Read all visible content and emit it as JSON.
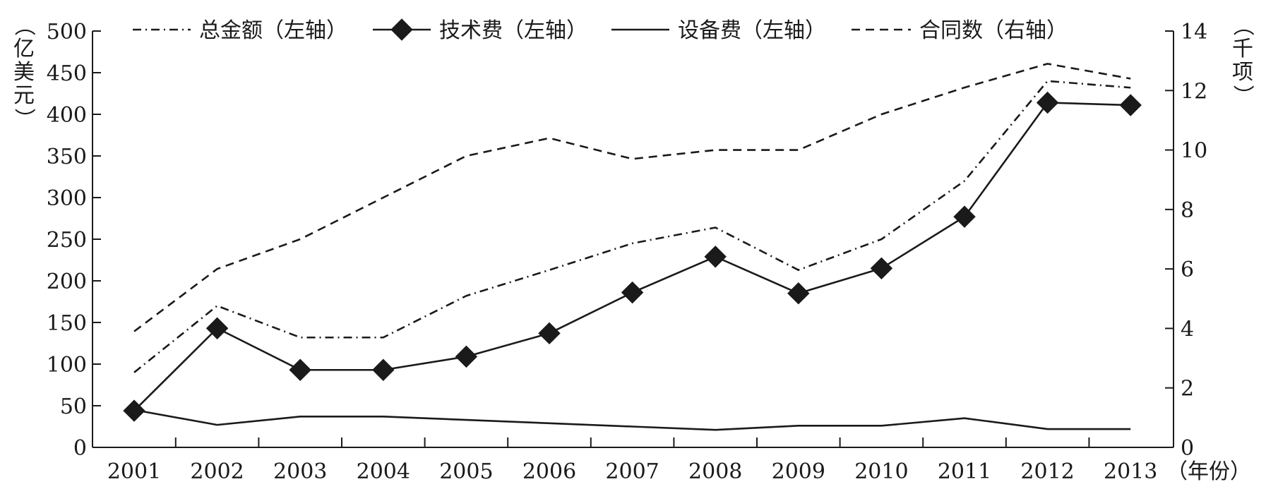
{
  "chart_data": {
    "type": "line",
    "categories": [
      "2001",
      "2002",
      "2003",
      "2004",
      "2005",
      "2006",
      "2007",
      "2008",
      "2009",
      "2010",
      "2011",
      "2012",
      "2013"
    ],
    "x_unit_label": "（年份）",
    "left_axis": {
      "unit_label": "（亿美元）",
      "ylim": [
        0,
        500
      ],
      "ticks": [
        "0",
        "50",
        "100",
        "150",
        "200",
        "250",
        "300",
        "350",
        "400",
        "450",
        "500"
      ]
    },
    "right_axis": {
      "unit_label": "（千项）",
      "ylim": [
        0,
        14
      ],
      "ticks": [
        "0",
        "2",
        "4",
        "6",
        "8",
        "10",
        "12",
        "14"
      ]
    },
    "legend_position": "top",
    "series": [
      {
        "name": "总金额（左轴）",
        "axis": "left",
        "style": "dash-dot",
        "values": [
          90,
          170,
          132,
          132,
          182,
          213,
          245,
          264,
          213,
          250,
          320,
          440,
          432
        ]
      },
      {
        "name": "技术费（左轴）",
        "axis": "left",
        "style": "solid-diamond",
        "values": [
          44,
          143,
          93,
          93,
          109,
          137,
          186,
          229,
          185,
          215,
          277,
          414,
          411
        ]
      },
      {
        "name": "设备费（左轴）",
        "axis": "left",
        "style": "solid",
        "values": [
          45,
          27,
          37,
          37,
          33,
          29,
          25,
          21,
          26,
          26,
          35,
          22,
          22
        ]
      },
      {
        "name": "合同数（右轴）",
        "axis": "right",
        "style": "dashed",
        "values": [
          3.9,
          6.0,
          7.0,
          8.4,
          9.8,
          10.4,
          9.7,
          10.0,
          10.0,
          11.2,
          12.1,
          12.9,
          12.4
        ]
      }
    ]
  }
}
